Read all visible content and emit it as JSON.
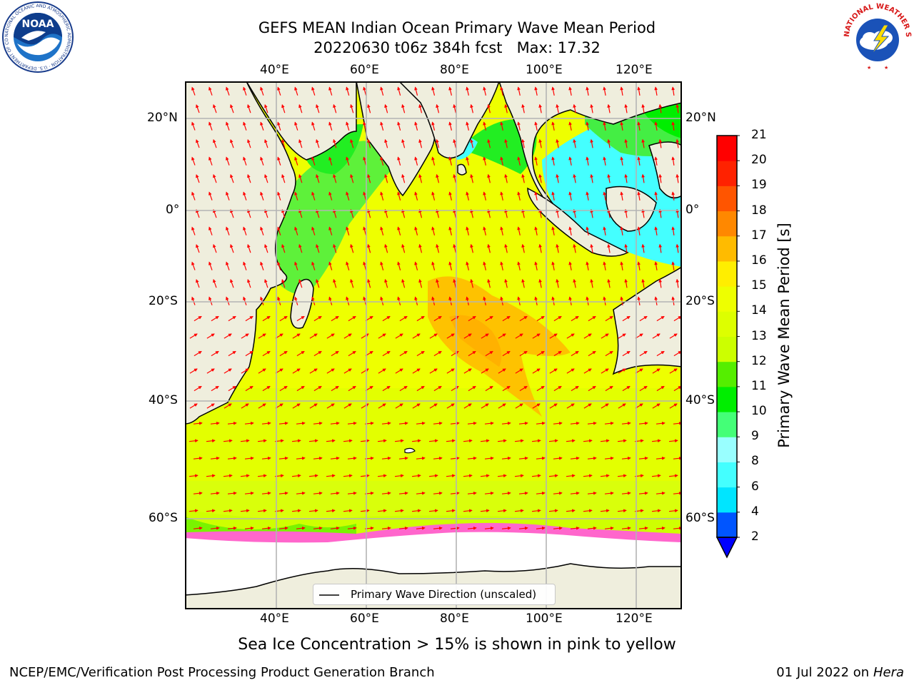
{
  "header": {
    "title_line1": "GEFS MEAN Indian Ocean Primary Wave Mean Period",
    "title_line2": "20220630 t06z 384h fcst   Max: 17.32"
  },
  "map": {
    "lon_labels": [
      "40°E",
      "60°E",
      "80°E",
      "100°E",
      "120°E"
    ],
    "lat_labels_left": [
      "20°N",
      "0°",
      "20°S",
      "40°S",
      "60°S"
    ],
    "lat_labels_right": [
      "20°N",
      "0°",
      "20°S",
      "40°S",
      "60°S"
    ],
    "land_color": "#efeedd",
    "ice_color": "#ffffff",
    "arrow_color": "#ff0000"
  },
  "colorbar": {
    "label": "Primary Wave Mean Period [s]",
    "ticks": [
      "2",
      "4",
      "6",
      "8",
      "9",
      "10",
      "11",
      "12",
      "13",
      "14",
      "15",
      "16",
      "17",
      "18",
      "19",
      "20",
      "21"
    ],
    "colors": [
      "#0055ff",
      "#00e5ff",
      "#44ffff",
      "#99ffff",
      "#44ff77",
      "#00ee00",
      "#55ee00",
      "#ccff00",
      "#ddff00",
      "#eeff00",
      "#ffee00",
      "#ffbb00",
      "#ff8800",
      "#ff5500",
      "#ff2200",
      "#ff0000"
    ],
    "extend_color": "#0000ff"
  },
  "legend": {
    "label": "Primary Wave Direction (unscaled)"
  },
  "caption": "Sea Ice Concentration > 15% is shown in pink to yellow",
  "footer": {
    "left": "NCEP/EMC/Verification Post Processing Product Generation Branch",
    "date": "01 Jul 2022 on ",
    "machine": "Hera"
  },
  "logos": {
    "noaa_text": "NOAA",
    "noaa_ring": "NATIONAL OCEANIC AND ATMOSPHERIC ADMINISTRATION · U.S. DEPARTMENT OF COMMERCE",
    "nws_ring": "NATIONAL WEATHER SERVICE"
  }
}
